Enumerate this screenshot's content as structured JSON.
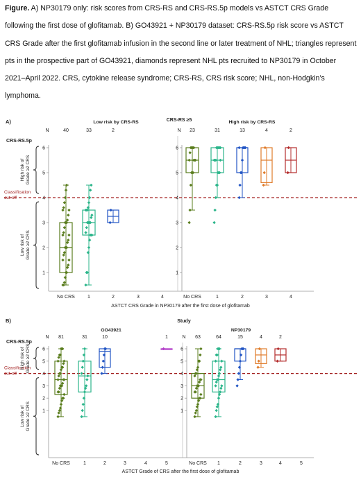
{
  "caption": {
    "label": "Figure.",
    "text": " A) NP30179 only: risk scores from CRS-RS and CRS-RS.5p models vs ASTCT CRS Grade following the first dose of glofitamab. B) GO43921 + NP30179 dataset: CRS-RS.5p risk score vs ASTCT CRS Grade after the first glofitamab infusion in the second line or later treatment of NHL; triangles represent pts in the prospective part of GO43921, diamonds represent NHL pts recruited to NP30179 in October 2021–April 2022. CRS, cytokine release syndrome; CRS-RS, CRS risk score; NHL, non-Hodgkin’s lymphoma."
  },
  "colors": {
    "grade0": "#5a7d1e",
    "grade1": "#2bb58a",
    "grade2": "#2255c4",
    "grade3": "#e07b2a",
    "grade4": "#b32c2c",
    "grade5": "#b23cc8",
    "cutoff": "#a32020"
  },
  "chart_data": [
    {
      "panel": "A)",
      "type": "box",
      "y_axis_title": "CRS-RS.5p",
      "ylim": [
        0.5,
        6.2
      ],
      "yticks": [
        "1",
        "2",
        "3",
        "4",
        "5",
        "6"
      ],
      "xlabel": "ASTCT CRS Grade in NP30179 after the first dose of glofitamab",
      "n_label": "N",
      "cutoff_value": 4.0,
      "cutoff_label": [
        "Classification",
        "cut-off"
      ],
      "brace_high": [
        "High risk of",
        "Grade ≥2 CRS"
      ],
      "brace_low": [
        "Low risk of",
        "Grade ≥2 CRS"
      ],
      "center_title": "CRS-RS ≥5",
      "groups": [
        {
          "title": "Low risk by CRS-RS",
          "categories": [
            "No CRS",
            "1",
            "2",
            "3",
            "4"
          ],
          "n": [
            "40",
            "33",
            "2",
            "",
            ""
          ],
          "boxes": [
            {
              "cat": 0,
              "grade": 0,
              "min": 0.5,
              "q1": 1.0,
              "median": 2.0,
              "q3": 3.0,
              "max": 4.5,
              "points": [
                0.5,
                0.5,
                0.6,
                0.8,
                1.0,
                1.0,
                1.2,
                1.3,
                1.5,
                1.5,
                1.7,
                1.8,
                2.0,
                2.0,
                2.0,
                2.2,
                2.3,
                2.5,
                2.5,
                2.6,
                2.8,
                3.0,
                3.0,
                3.0,
                3.1,
                3.3,
                3.5,
                3.5,
                3.6,
                3.8,
                4.0,
                4.3,
                4.5
              ]
            },
            {
              "cat": 1,
              "grade": 1,
              "min": 0.5,
              "q1": 2.5,
              "median": 3.0,
              "q3": 3.5,
              "max": 4.5,
              "points": [
                0.5,
                1.0,
                1.0,
                1.8,
                2.0,
                2.3,
                2.5,
                2.5,
                2.5,
                2.6,
                2.8,
                3.0,
                3.0,
                3.0,
                3.0,
                3.0,
                3.2,
                3.3,
                3.5,
                3.5,
                3.5,
                3.6,
                3.8,
                4.0,
                4.3,
                4.5
              ]
            },
            {
              "cat": 2,
              "grade": 2,
              "min": 3.0,
              "q1": 3.0,
              "median": 3.25,
              "q3": 3.5,
              "max": 3.5,
              "points": [
                3.0,
                3.5
              ]
            }
          ]
        },
        {
          "title": "High risk by CRS-RS",
          "categories": [
            "No CRS",
            "1",
            "2",
            "3",
            "4"
          ],
          "n": [
            "23",
            "31",
            "13",
            "4",
            "2"
          ],
          "boxes": [
            {
              "cat": 0,
              "grade": 0,
              "min": 3.5,
              "q1": 5.0,
              "median": 5.5,
              "q3": 6.0,
              "max": 6.0,
              "points": [
                3.0,
                3.5,
                4.5,
                5.0,
                5.0,
                5.0,
                5.5,
                5.5,
                5.5,
                5.5,
                5.8,
                6.0,
                6.0,
                6.0,
                6.0,
                6.0
              ]
            },
            {
              "cat": 1,
              "grade": 1,
              "min": 4.0,
              "q1": 5.0,
              "median": 5.5,
              "q3": 6.0,
              "max": 6.0,
              "points": [
                3.0,
                3.5,
                4.0,
                4.5,
                4.5,
                5.0,
                5.0,
                5.0,
                5.5,
                5.5,
                5.5,
                5.5,
                6.0,
                6.0,
                6.0,
                6.0,
                6.0,
                6.0
              ]
            },
            {
              "cat": 2,
              "grade": 2,
              "min": 4.0,
              "q1": 5.0,
              "median": 6.0,
              "q3": 6.0,
              "max": 6.0,
              "points": [
                4.0,
                4.5,
                5.0,
                5.0,
                5.5,
                6.0,
                6.0,
                6.0,
                6.0,
                6.0
              ]
            },
            {
              "cat": 3,
              "grade": 3,
              "min": 4.5,
              "q1": 4.6,
              "median": 5.5,
              "q3": 6.0,
              "max": 6.0,
              "points": [
                4.5,
                5.0,
                6.0
              ]
            },
            {
              "cat": 4,
              "grade": 4,
              "min": 5.0,
              "q1": 5.0,
              "median": 5.5,
              "q3": 6.0,
              "max": 6.0,
              "points": [
                5.0,
                6.0
              ]
            }
          ]
        }
      ]
    },
    {
      "panel": "B)",
      "type": "box",
      "y_axis_title": "CRS-RS.5p",
      "ylim": [
        0.5,
        6.2
      ],
      "yticks": [
        "1",
        "2",
        "3",
        "4",
        "5",
        "6"
      ],
      "xlabel": "ASTCT Grade of CRS after the first dose of glofitamab",
      "n_label": "N",
      "cutoff_value": 4.0,
      "cutoff_label": [
        "Classification",
        "cut-off"
      ],
      "brace_high": [
        "High risk of",
        "Grade ≥2 CRS"
      ],
      "brace_low": [
        "Low risk of",
        "Grade ≥2 CRS"
      ],
      "center_title": "Study",
      "groups": [
        {
          "title": "GO43921",
          "categories": [
            "No CRS",
            "1",
            "2",
            "3",
            "4",
            "5"
          ],
          "n": [
            "81",
            "31",
            "10",
            "",
            "",
            "1"
          ],
          "boxes": [
            {
              "cat": 0,
              "grade": 0,
              "min": 0.5,
              "q1": 2.3,
              "median": 3.5,
              "q3": 5.0,
              "max": 6.0,
              "points": [
                0.5,
                0.8,
                1.0,
                1.2,
                1.5,
                1.8,
                2.0,
                2.0,
                2.3,
                2.5,
                2.5,
                2.8,
                3.0,
                3.0,
                3.0,
                3.2,
                3.5,
                3.5,
                3.5,
                3.8,
                4.0,
                4.0,
                4.3,
                4.5,
                4.5,
                4.8,
                5.0,
                5.0,
                5.3,
                5.5,
                5.5,
                6.0,
                6.0,
                6.0
              ]
            },
            {
              "cat": 1,
              "grade": 1,
              "min": 0.5,
              "q1": 2.5,
              "median": 3.8,
              "q3": 5.0,
              "max": 6.0,
              "points": [
                0.5,
                1.0,
                1.5,
                2.0,
                2.5,
                2.8,
                3.0,
                3.5,
                3.8,
                4.0,
                4.5,
                5.0,
                5.5,
                6.0
              ]
            },
            {
              "cat": 2,
              "grade": 2,
              "min": 4.0,
              "q1": 4.5,
              "median": 5.8,
              "q3": 6.0,
              "max": 6.0,
              "points": [
                4.0,
                4.5,
                5.0,
                5.5,
                6.0,
                6.0
              ]
            },
            {
              "cat": 5,
              "grade": 5,
              "min": 6.0,
              "q1": 6.0,
              "median": 6.0,
              "q3": 6.0,
              "max": 6.0,
              "points": [
                6.0
              ]
            }
          ]
        },
        {
          "title": "NP30179",
          "categories": [
            "No CRS",
            "1",
            "2",
            "3",
            "4",
            "5"
          ],
          "n": [
            "63",
            "64",
            "15",
            "4",
            "2",
            ""
          ],
          "boxes": [
            {
              "cat": 0,
              "grade": 0,
              "min": 0.5,
              "q1": 2.0,
              "median": 3.0,
              "q3": 4.0,
              "max": 6.0,
              "points": [
                0.5,
                0.8,
                1.0,
                1.3,
                1.5,
                1.8,
                2.0,
                2.0,
                2.3,
                2.5,
                2.5,
                2.8,
                3.0,
                3.0,
                3.0,
                3.3,
                3.5,
                3.5,
                3.8,
                4.0,
                4.0,
                4.3,
                4.5,
                5.0,
                5.0,
                5.5,
                6.0
              ]
            },
            {
              "cat": 1,
              "grade": 1,
              "min": 0.5,
              "q1": 2.5,
              "median": 3.5,
              "q3": 5.0,
              "max": 6.0,
              "points": [
                0.5,
                1.0,
                1.3,
                1.5,
                2.0,
                2.3,
                2.5,
                2.8,
                3.0,
                3.0,
                3.3,
                3.5,
                3.5,
                3.8,
                4.0,
                4.3,
                4.5,
                5.0,
                5.0,
                5.5,
                5.5,
                6.0,
                6.0,
                6.0
              ]
            },
            {
              "cat": 2,
              "grade": 2,
              "min": 3.5,
              "q1": 5.0,
              "median": 6.0,
              "q3": 6.0,
              "max": 6.0,
              "points": [
                3.0,
                3.5,
                4.0,
                4.5,
                5.0,
                5.5,
                6.0,
                6.0,
                6.0
              ]
            },
            {
              "cat": 3,
              "grade": 3,
              "min": 4.5,
              "q1": 4.8,
              "median": 5.5,
              "q3": 6.0,
              "max": 6.0,
              "points": [
                4.5,
                5.0,
                6.0
              ]
            },
            {
              "cat": 4,
              "grade": 4,
              "min": 5.0,
              "q1": 5.0,
              "median": 5.5,
              "q3": 6.0,
              "max": 6.0,
              "points": [
                5.0,
                6.0
              ]
            }
          ]
        }
      ]
    }
  ]
}
